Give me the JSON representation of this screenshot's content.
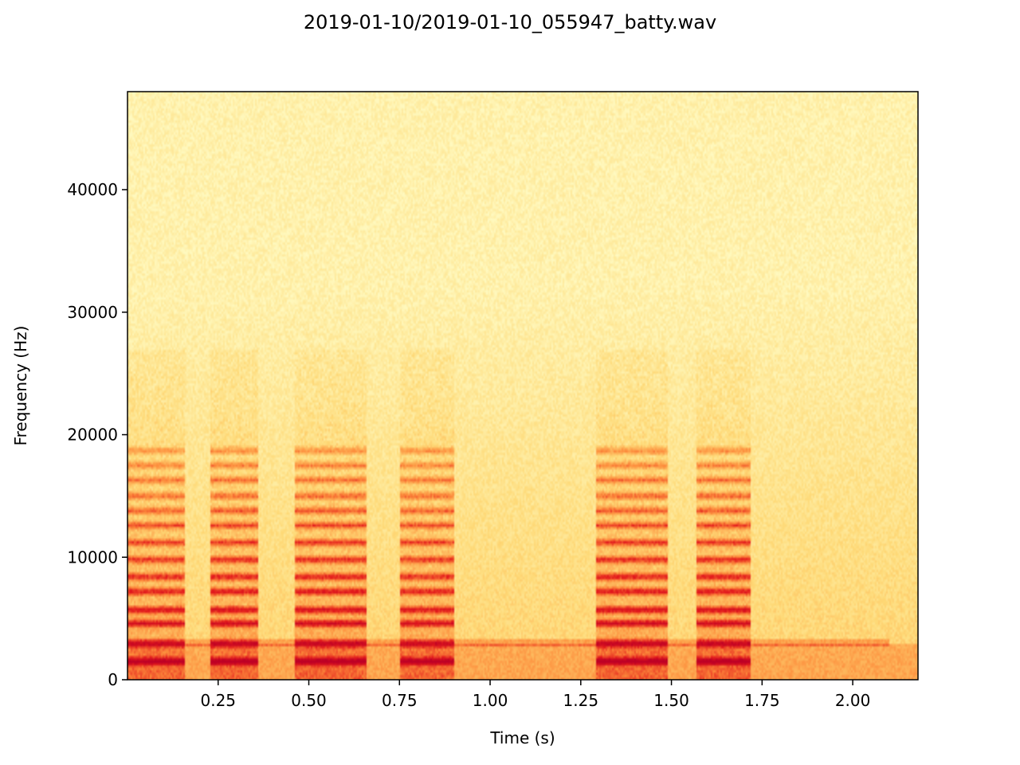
{
  "chart_data": {
    "type": "heatmap",
    "title": "2019-01-10/2019-01-10_055947_batty.wav",
    "xlabel": "Time (s)",
    "ylabel": "Frequency (Hz)",
    "xlim": [
      0.0,
      2.18
    ],
    "ylim": [
      0,
      48000
    ],
    "x_ticks": [
      0.25,
      0.5,
      0.75,
      1.0,
      1.25,
      1.5,
      1.75,
      2.0
    ],
    "x_tick_labels": [
      "0.25",
      "0.50",
      "0.75",
      "1.00",
      "1.25",
      "1.50",
      "1.75",
      "2.00"
    ],
    "y_ticks": [
      0,
      10000,
      20000,
      30000,
      40000
    ],
    "y_tick_labels": [
      "0",
      "10000",
      "20000",
      "30000",
      "40000"
    ],
    "colormap": "YlOrRd",
    "colors": {
      "low": "#ffffcc",
      "mid": "#fd8d3c",
      "high": "#bd0026"
    },
    "grid": false,
    "vocal_segments": [
      {
        "start": 0.0,
        "end": 0.16,
        "intensity": 0.85
      },
      {
        "start": 0.23,
        "end": 0.36,
        "intensity": 0.9
      },
      {
        "start": 0.46,
        "end": 0.66,
        "intensity": 0.9
      },
      {
        "start": 0.75,
        "end": 0.9,
        "intensity": 0.85
      },
      {
        "start": 1.29,
        "end": 1.49,
        "intensity": 0.9
      },
      {
        "start": 1.57,
        "end": 1.72,
        "intensity": 0.9
      }
    ],
    "harmonic_bands_hz": [
      1500,
      3000,
      4600,
      5700,
      7200,
      8400,
      9800,
      11200,
      12600,
      13800,
      15000,
      16300,
      17500,
      18700
    ]
  }
}
